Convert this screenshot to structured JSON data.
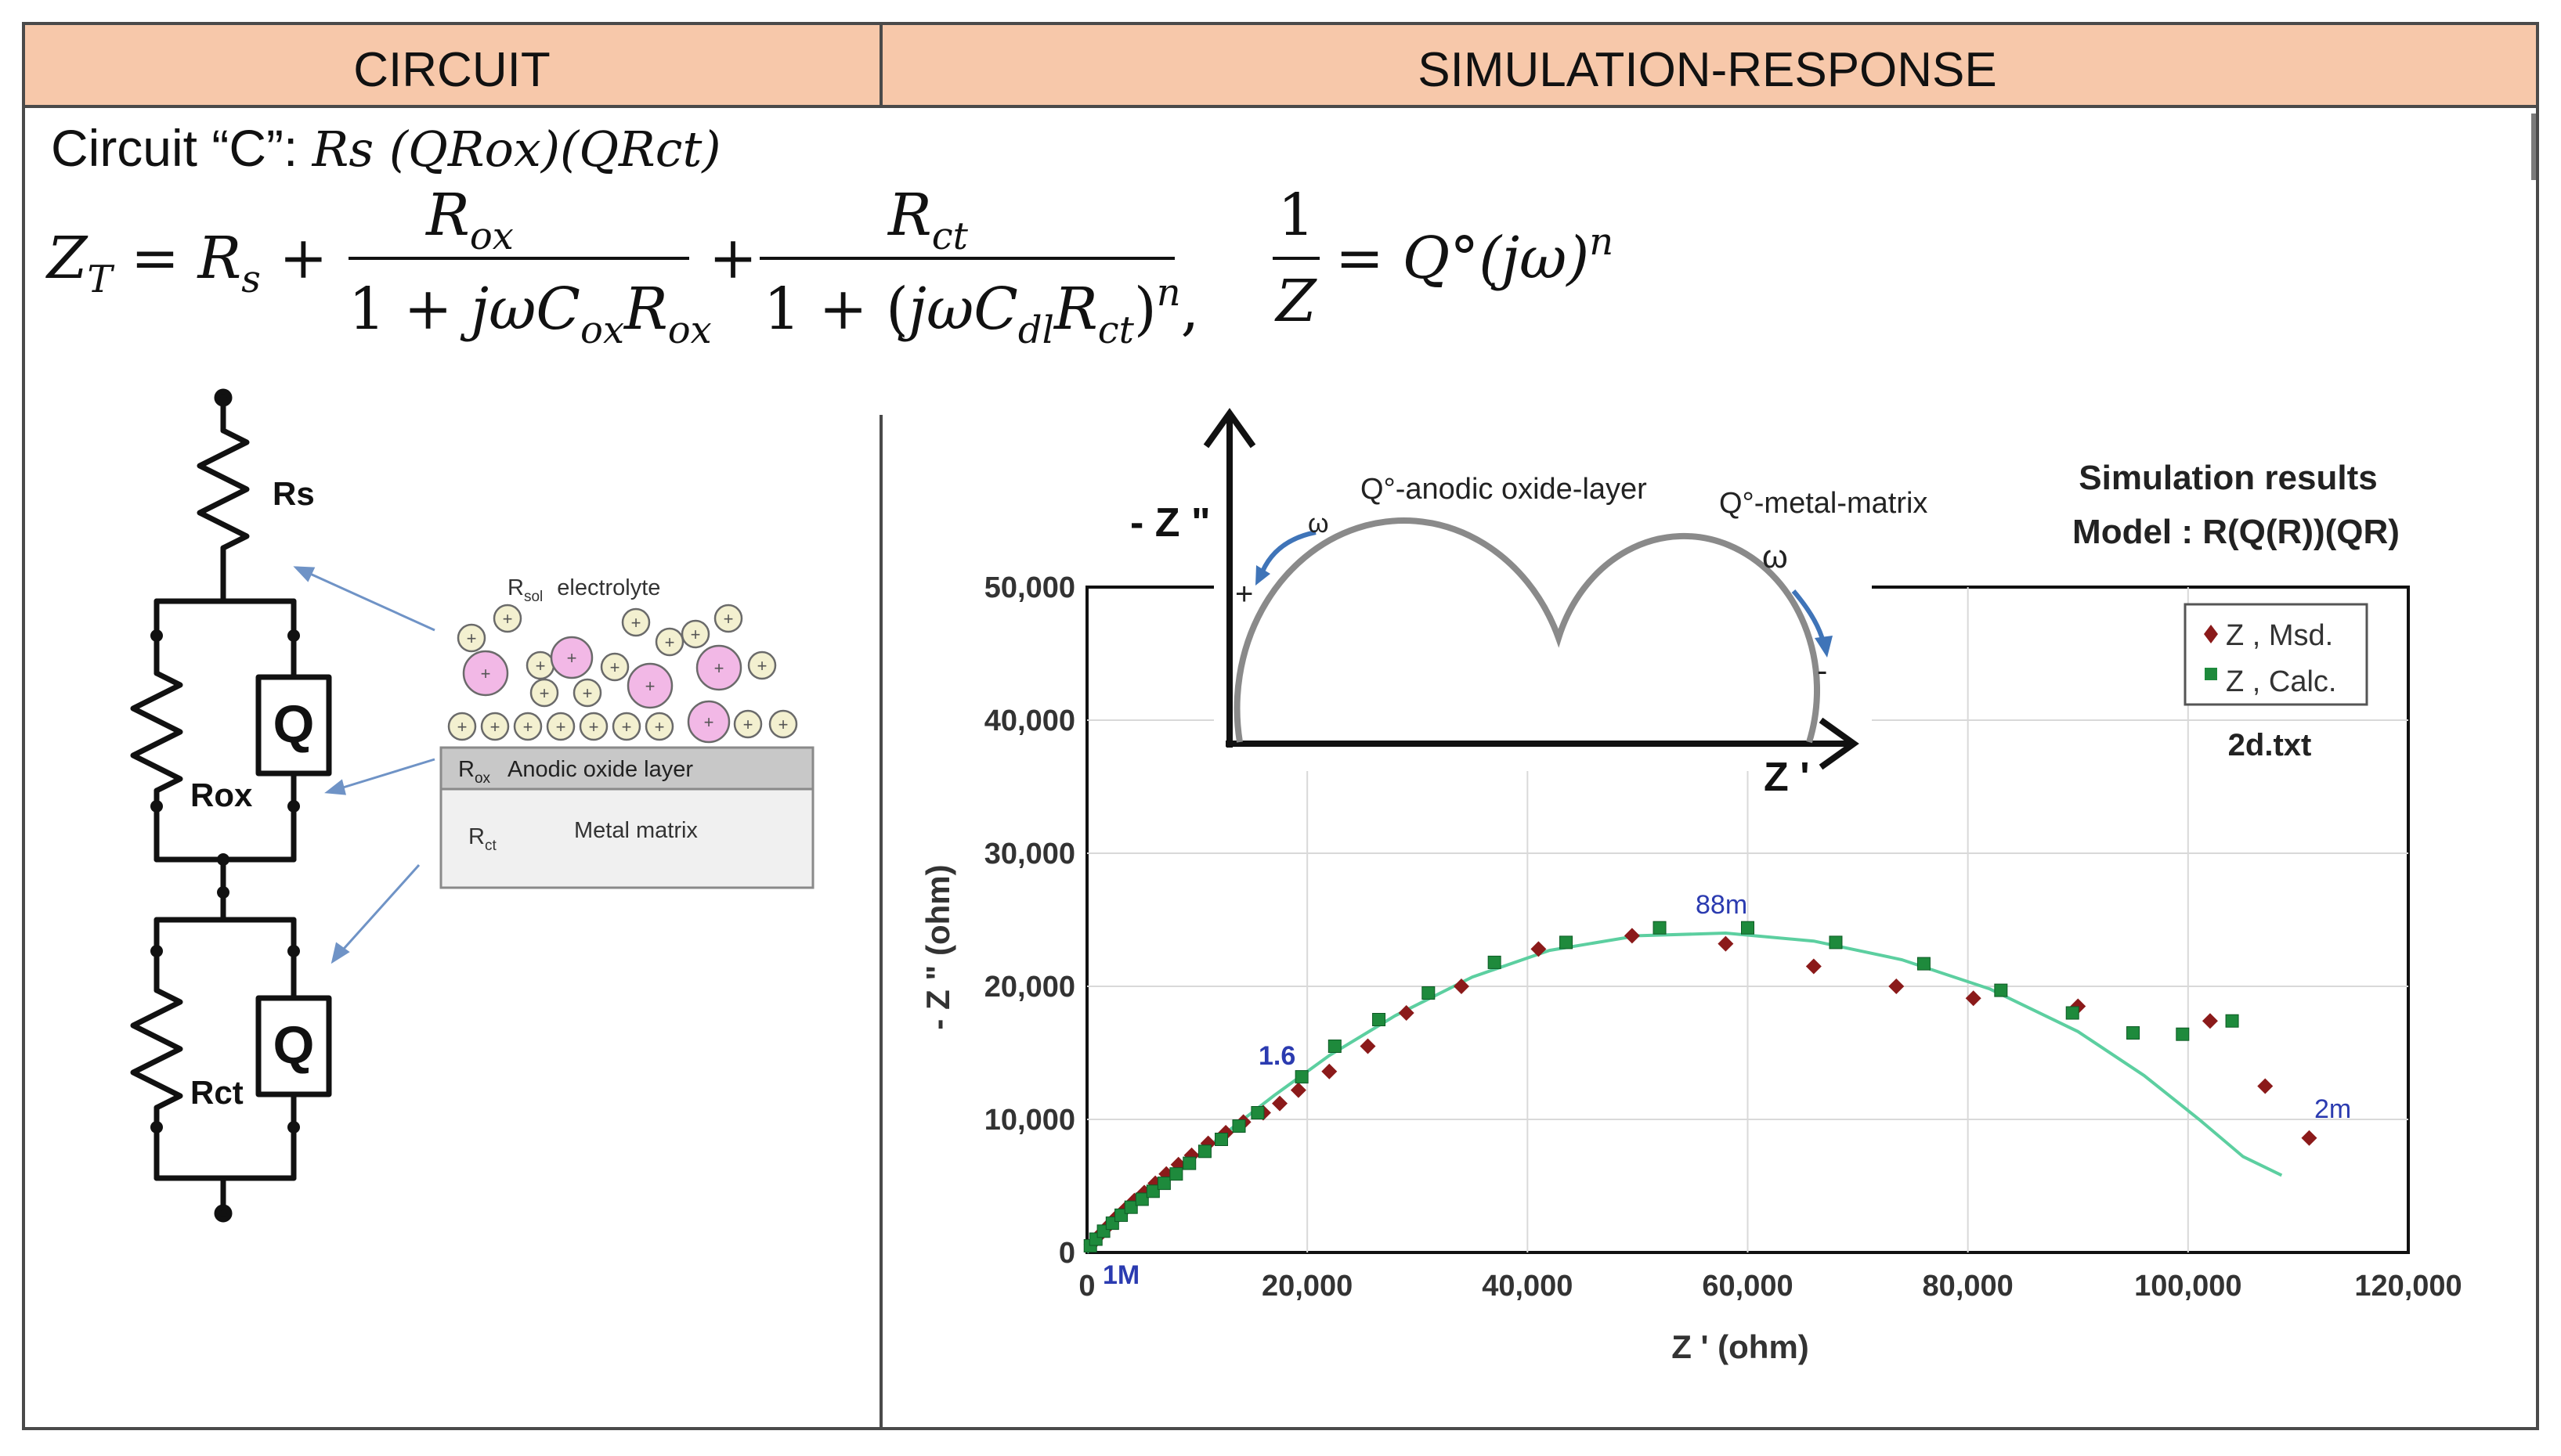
{
  "header": {
    "left_title": "CIRCUIT",
    "right_title": "SIMULATION-RESPONSE",
    "fill_color": "#f7c8aa"
  },
  "circuit": {
    "label_prefix": "Circuit “C”:",
    "label_formula": "Rs (QRox)(QRct)",
    "equation_lhs": "Z_T = R_s +",
    "equation_term1": "R_ox / (1 + jωC_ox R_ox)",
    "equation_term2": "R_ct / (1 + (jωC_dl R_ct)^n)",
    "equation_cpe": "1/Z = Q°(jω)^n",
    "components": {
      "rs": "Rs",
      "rox": "Rox",
      "rct": "Rct",
      "q1": "Q",
      "q2": "Q"
    },
    "layer_schematic": {
      "electrolyte_sub": "R",
      "electrolyte_subscript": "sol",
      "electrolyte": "electrolyte",
      "oxide_sub": "R",
      "oxide_subscript": "ox",
      "oxide": "Anodic oxide layer",
      "metal_sub": "R",
      "metal_subscript": "ct",
      "metal": "Metal matrix"
    }
  },
  "inset": {
    "y_label": "- Z \"",
    "x_label": "Z '",
    "label_oxide": "Q°-anodic oxide-layer",
    "label_metal": "Q°-metal-matrix",
    "omega_1": "ω",
    "omega_2": "ω",
    "plus": "+",
    "minus": "-"
  },
  "sim_title": {
    "line1": "Simulation results",
    "line2": "Model : R(Q(R))(QR)"
  },
  "legend": {
    "measured": "Z ,  Msd.",
    "calculated": "Z ,  Calc.",
    "file": "2d.txt",
    "measured_color": "#8b1a1a",
    "calculated_color": "#1e8a3c"
  },
  "annotations": {
    "f_88m": "88m",
    "f_1_6": "1.6",
    "f_2m": "2m",
    "f_1M": "1M"
  },
  "chart_data": {
    "type": "scatter",
    "xlabel": "Z ' (ohm)",
    "ylabel": "- Z \" (ohm)",
    "xlim": [
      0,
      120000
    ],
    "ylim": [
      0,
      50000
    ],
    "x_ticks": [
      "0",
      "20,000",
      "40,000",
      "60,000",
      "80,000",
      "100,000",
      "120,000"
    ],
    "y_ticks": [
      "0",
      "10,000",
      "20,000",
      "30,000",
      "40,000",
      "50,000"
    ],
    "grid": true,
    "legend_position": "top-right",
    "series": [
      {
        "name": "Z , Msd.",
        "marker": "diamond",
        "color": "#8b1a1a",
        "points": [
          [
            400,
            600
          ],
          [
            1000,
            1200
          ],
          [
            1800,
            1900
          ],
          [
            2600,
            2600
          ],
          [
            3400,
            3200
          ],
          [
            4300,
            3900
          ],
          [
            5200,
            4500
          ],
          [
            6200,
            5200
          ],
          [
            7200,
            5900
          ],
          [
            8300,
            6600
          ],
          [
            9500,
            7300
          ],
          [
            11000,
            8200
          ],
          [
            12600,
            9000
          ],
          [
            14200,
            9800
          ],
          [
            16000,
            10500
          ],
          [
            17500,
            11200
          ],
          [
            19200,
            12200
          ],
          [
            22000,
            13600
          ],
          [
            25500,
            15500
          ],
          [
            29000,
            18000
          ],
          [
            34000,
            20000
          ],
          [
            41000,
            22800
          ],
          [
            49500,
            23800
          ],
          [
            58000,
            23200
          ],
          [
            66000,
            21500
          ],
          [
            73500,
            20000
          ],
          [
            80500,
            19100
          ],
          [
            90000,
            18500
          ],
          [
            102000,
            17400
          ],
          [
            107000,
            12500
          ],
          [
            111000,
            8600
          ]
        ]
      },
      {
        "name": "Z , Calc.",
        "marker": "square",
        "color": "#1e8a3c",
        "points": [
          [
            300,
            500
          ],
          [
            800,
            1000
          ],
          [
            1500,
            1600
          ],
          [
            2300,
            2200
          ],
          [
            3100,
            2800
          ],
          [
            4000,
            3400
          ],
          [
            5000,
            4000
          ],
          [
            6000,
            4600
          ],
          [
            7000,
            5200
          ],
          [
            8100,
            5900
          ],
          [
            9300,
            6700
          ],
          [
            10700,
            7600
          ],
          [
            12200,
            8500
          ],
          [
            13800,
            9500
          ],
          [
            15500,
            10500
          ],
          [
            19500,
            13200
          ],
          [
            22500,
            15500
          ],
          [
            26500,
            17500
          ],
          [
            31000,
            19500
          ],
          [
            37000,
            21800
          ],
          [
            43500,
            23300
          ],
          [
            52000,
            24400
          ],
          [
            60000,
            24400
          ],
          [
            68000,
            23300
          ],
          [
            76000,
            21700
          ],
          [
            83000,
            19700
          ],
          [
            89500,
            18000
          ],
          [
            95000,
            16500
          ],
          [
            99500,
            16400
          ],
          [
            104000,
            17400
          ]
        ]
      },
      {
        "name": "fit",
        "type": "line",
        "color": "#5ccfa0",
        "points": [
          [
            0,
            0
          ],
          [
            3000,
            2700
          ],
          [
            7000,
            5300
          ],
          [
            12000,
            8600
          ],
          [
            17000,
            11800
          ],
          [
            22000,
            14800
          ],
          [
            28000,
            17800
          ],
          [
            35000,
            20700
          ],
          [
            42000,
            22700
          ],
          [
            50000,
            23800
          ],
          [
            58000,
            24000
          ],
          [
            66000,
            23400
          ],
          [
            74000,
            22000
          ],
          [
            82000,
            19800
          ],
          [
            90000,
            16600
          ],
          [
            96000,
            13300
          ],
          [
            101000,
            10000
          ],
          [
            105000,
            7200
          ],
          [
            108500,
            5800
          ]
        ]
      }
    ]
  }
}
